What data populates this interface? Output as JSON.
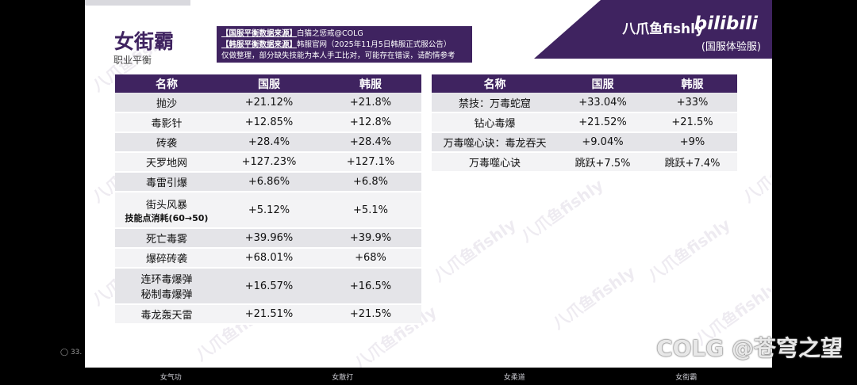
{
  "brand": {
    "name": "八爪鱼fishly",
    "logo": "bilibili",
    "server_label": "(国服体验服)"
  },
  "title": "女街霸",
  "subtitle": "职业平衡",
  "source": {
    "line1_tag": "【国服平衡数据来源】",
    "line1_text": "白猫之惩戒@COLG",
    "line2_tag": "【韩服平衡数据来源】",
    "line2_text": "韩服官网（2025年11月5日韩服正式服公告）",
    "line3": "仅做整理，部分缺失技能为本人手工比对，可能存在错误，请酌情参考"
  },
  "table_headers": [
    "名称",
    "国服",
    "韩服"
  ],
  "left_rows": [
    {
      "name": "抛沙",
      "cn": "+21.12%",
      "kr": "+21.8%"
    },
    {
      "name": "毒影针",
      "cn": "+12.85%",
      "kr": "+12.8%"
    },
    {
      "name": "砖袭",
      "cn": "+28.4%",
      "kr": "+28.4%"
    },
    {
      "name": "天罗地网",
      "cn": "+127.23%",
      "kr": "+127.1%"
    },
    {
      "name": "毒雷引爆",
      "cn": "+6.86%",
      "kr": "+6.8%"
    },
    {
      "name": "街头风暴",
      "note": "技能点消耗(60→50)",
      "cn": "+5.12%",
      "kr": "+5.1%"
    },
    {
      "name": "死亡毒雾",
      "cn": "+39.96%",
      "kr": "+39.9%"
    },
    {
      "name": "爆碎砖袭",
      "cn": "+68.01%",
      "kr": "+68%"
    },
    {
      "name": "连环毒爆弹",
      "name2": "秘制毒爆弹",
      "cn": "+16.57%",
      "kr": "+16.5%"
    },
    {
      "name": "毒龙轰天雷",
      "cn": "+21.51%",
      "kr": "+21.5%"
    }
  ],
  "right_rows": [
    {
      "name": "禁技：万毒蛇窟",
      "cn": "+33.04%",
      "kr": "+33%"
    },
    {
      "name": "钻心毒爆",
      "cn": "+21.52%",
      "kr": "+21.5%"
    },
    {
      "name": "万毒噬心诀：毒龙吞天",
      "cn": "+9.04%",
      "kr": "+9%"
    },
    {
      "name": "万毒噬心诀",
      "cn": "跳跃+7.5%",
      "kr": "跳跃+7.4%"
    }
  ],
  "watermark_text": "八爪鱼fishly",
  "nav_items": [
    "女气功",
    "女散打",
    "女柔道",
    "女街霸"
  ],
  "side_counter": "33.",
  "colg_watermark": "COLG @苍穹之望",
  "colors": {
    "accent": "#3f2360",
    "row_odd": "#e4e4e8",
    "row_even": "#f3f3f5"
  }
}
